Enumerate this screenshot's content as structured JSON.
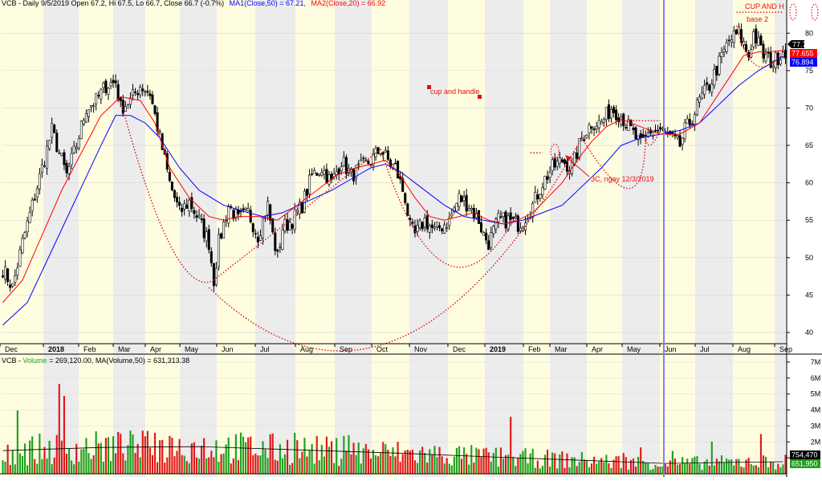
{
  "header": {
    "price_title": "VCB - Daily 9/5/2019 Open 67.2, Hi 67.5, Lo 66.7, Close 66.7 (-0.7%)",
    "ma1_label": "MA1(Close,50) = 67.21,",
    "ma2_label": "MA2(Close,20) = 66.92",
    "volume_prefix": "VCB - ",
    "volume_label": "Volume",
    "volume_title": " = 269,120.00, MA(Volume,50) = 631,313.38"
  },
  "colors": {
    "background": "#ffffff",
    "band_light": "#fffde0",
    "band_gray": "#ececec",
    "candle": "#000000",
    "ma50": "#0000ff",
    "ma20": "#ff0000",
    "annotation": "#e01010",
    "volume_up": "#1ea01e",
    "volume_down": "#e01818",
    "volume_ma": "#000000",
    "vline": "#8080ff"
  },
  "annotations": {
    "cup_and_handle": "cup and handle",
    "cup_and_h": "CUP AND H",
    "base2": "base 2",
    "note_3c": "3C, ngay 12/3/2019"
  },
  "price_badges": {
    "last": "77.7",
    "ma20": "77.655",
    "ma50": "76.894"
  },
  "volume_badges": {
    "ma": "754,470",
    "last": "651,950"
  },
  "chart_data": [
    {
      "type": "candlestick",
      "title": "VCB - Daily",
      "ylim": [
        38.5,
        84
      ],
      "y_ticks": [
        40,
        45,
        50,
        55,
        60,
        65,
        70,
        75,
        80
      ],
      "y_tick_labels": [
        "40",
        "45",
        "50",
        "55",
        "60",
        "65",
        "70",
        "75",
        "80"
      ],
      "x_labels": [
        "Dec",
        "2018",
        "Feb",
        "Mar",
        "Apr",
        "May",
        "Jun",
        "Jul",
        "Aug",
        "Sep",
        "Oct",
        "Nov",
        "Dec",
        "2019",
        "Feb",
        "Mar",
        "Apr",
        "May",
        "Jun",
        "Jul",
        "Aug",
        "Sep"
      ],
      "x_label_bold": [
        false,
        true,
        false,
        false,
        false,
        false,
        false,
        false,
        false,
        false,
        false,
        false,
        false,
        true,
        false,
        false,
        false,
        false,
        false,
        false,
        false,
        false
      ],
      "close_path": [
        [
          0,
          48.5
        ],
        [
          4,
          46
        ],
        [
          8,
          52
        ],
        [
          12,
          57
        ],
        [
          16,
          62
        ],
        [
          20,
          67
        ],
        [
          22,
          65
        ],
        [
          26,
          61
        ],
        [
          30,
          65
        ],
        [
          34,
          70
        ],
        [
          38,
          71
        ],
        [
          42,
          73
        ],
        [
          46,
          73.5
        ],
        [
          48,
          70
        ],
        [
          52,
          71
        ],
        [
          56,
          73
        ],
        [
          60,
          72
        ],
        [
          62,
          69
        ],
        [
          64,
          66
        ],
        [
          68,
          60
        ],
        [
          72,
          56
        ],
        [
          76,
          57.5
        ],
        [
          80,
          55
        ],
        [
          84,
          52
        ],
        [
          86,
          47
        ],
        [
          88,
          52
        ],
        [
          92,
          57
        ],
        [
          96,
          55
        ],
        [
          100,
          56
        ],
        [
          104,
          53
        ],
        [
          108,
          57
        ],
        [
          110,
          53
        ],
        [
          112,
          50
        ],
        [
          114,
          54
        ],
        [
          118,
          55
        ],
        [
          122,
          57
        ],
        [
          126,
          61
        ],
        [
          130,
          62
        ],
        [
          134,
          60
        ],
        [
          138,
          63
        ],
        [
          142,
          61
        ],
        [
          146,
          62
        ],
        [
          150,
          63
        ],
        [
          154,
          64.5
        ],
        [
          158,
          62.5
        ],
        [
          160,
          62
        ],
        [
          162,
          60
        ],
        [
          164,
          58
        ],
        [
          166,
          54
        ],
        [
          168,
          53
        ],
        [
          172,
          55
        ],
        [
          176,
          53.5
        ],
        [
          178,
          54
        ],
        [
          182,
          55
        ],
        [
          186,
          58
        ],
        [
          190,
          57
        ],
        [
          194,
          55
        ],
        [
          196,
          53
        ],
        [
          198,
          52
        ],
        [
          202,
          55
        ],
        [
          206,
          55
        ],
        [
          210,
          54.5
        ],
        [
          212,
          55
        ],
        [
          216,
          57
        ],
        [
          220,
          60
        ],
        [
          224,
          62
        ],
        [
          228,
          63
        ],
        [
          232,
          62
        ],
        [
          236,
          66
        ],
        [
          240,
          68
        ],
        [
          244,
          68
        ],
        [
          248,
          70
        ],
        [
          252,
          69
        ],
        [
          256,
          67
        ],
        [
          260,
          65
        ],
        [
          264,
          67
        ],
        [
          268,
          67
        ],
        [
          272,
          66
        ],
        [
          276,
          65
        ],
        [
          278,
          67
        ],
        [
          280,
          68
        ],
        [
          284,
          71
        ],
        [
          288,
          73
        ],
        [
          292,
          76
        ],
        [
          296,
          79
        ],
        [
          300,
          80
        ],
        [
          304,
          77
        ],
        [
          306,
          80
        ],
        [
          310,
          77
        ],
        [
          314,
          76
        ],
        [
          318,
          77.7
        ]
      ],
      "series": [
        {
          "name": "MA1(Close,50)",
          "points": [
            [
              0,
              41
            ],
            [
              10,
              44
            ],
            [
              20,
              51
            ],
            [
              30,
              58
            ],
            [
              40,
              65
            ],
            [
              46,
              69
            ],
            [
              52,
              69
            ],
            [
              58,
              68
            ],
            [
              64,
              66
            ],
            [
              72,
              62
            ],
            [
              80,
              59
            ],
            [
              90,
              57
            ],
            [
              100,
              56
            ],
            [
              106,
              55.5
            ],
            [
              114,
              56
            ],
            [
              124,
              57.5
            ],
            [
              134,
              59
            ],
            [
              142,
              60.5
            ],
            [
              150,
              62
            ],
            [
              156,
              62.5
            ],
            [
              162,
              61.5
            ],
            [
              170,
              59.5
            ],
            [
              180,
              57
            ],
            [
              188,
              55.5
            ],
            [
              196,
              55
            ],
            [
              204,
              54.5
            ],
            [
              212,
              55
            ],
            [
              220,
              56
            ],
            [
              228,
              57
            ],
            [
              236,
              59.5
            ],
            [
              244,
              62
            ],
            [
              252,
              65
            ],
            [
              260,
              66
            ],
            [
              268,
              66.5
            ],
            [
              276,
              67
            ],
            [
              284,
              68
            ],
            [
              292,
              70.5
            ],
            [
              300,
              73
            ],
            [
              308,
              75
            ],
            [
              318,
              76.9
            ]
          ]
        },
        {
          "name": "MA2(Close,20)",
          "points": [
            [
              0,
              44
            ],
            [
              8,
              47
            ],
            [
              16,
              53
            ],
            [
              24,
              59
            ],
            [
              32,
              64
            ],
            [
              40,
              69
            ],
            [
              48,
              71.5
            ],
            [
              56,
              71
            ],
            [
              62,
              68
            ],
            [
              68,
              62
            ],
            [
              76,
              58
            ],
            [
              84,
              55.5
            ],
            [
              90,
              55
            ],
            [
              96,
              55.5
            ],
            [
              104,
              55.5
            ],
            [
              112,
              55
            ],
            [
              120,
              57
            ],
            [
              128,
              59
            ],
            [
              136,
              61
            ],
            [
              144,
              62
            ],
            [
              150,
              62.5
            ],
            [
              156,
              63
            ],
            [
              162,
              61
            ],
            [
              168,
              58
            ],
            [
              174,
              55.5
            ],
            [
              180,
              55
            ],
            [
              186,
              55.5
            ],
            [
              192,
              56
            ],
            [
              198,
              55
            ],
            [
              204,
              54.5
            ],
            [
              210,
              55
            ],
            [
              216,
              56
            ],
            [
              222,
              58
            ],
            [
              228,
              60
            ],
            [
              234,
              63
            ],
            [
              240,
              65.5
            ],
            [
              246,
              67.5
            ],
            [
              252,
              68.5
            ],
            [
              260,
              67.5
            ],
            [
              268,
              66.5
            ],
            [
              276,
              66.5
            ],
            [
              284,
              68
            ],
            [
              290,
              71
            ],
            [
              296,
              74
            ],
            [
              302,
              77
            ],
            [
              308,
              77.5
            ],
            [
              312,
              77.5
            ],
            [
              318,
              77.7
            ]
          ]
        }
      ]
    },
    {
      "type": "bar",
      "title": "Volume",
      "ylim": [
        0,
        7500000
      ],
      "y_ticks": [
        1000000,
        2000000,
        3000000,
        4000000,
        5000000,
        6000000,
        7000000
      ],
      "y_tick_labels": [
        "1M",
        "2M",
        "3M",
        "4M",
        "5M",
        "6M",
        "7M"
      ],
      "ma_points": [
        [
          0,
          1450000
        ],
        [
          40,
          1650000
        ],
        [
          80,
          1700000
        ],
        [
          120,
          1500000
        ],
        [
          160,
          1300000
        ],
        [
          200,
          1050000
        ],
        [
          240,
          820000
        ],
        [
          270,
          650000
        ],
        [
          290,
          700000
        ],
        [
          318,
          754470
        ]
      ]
    }
  ]
}
